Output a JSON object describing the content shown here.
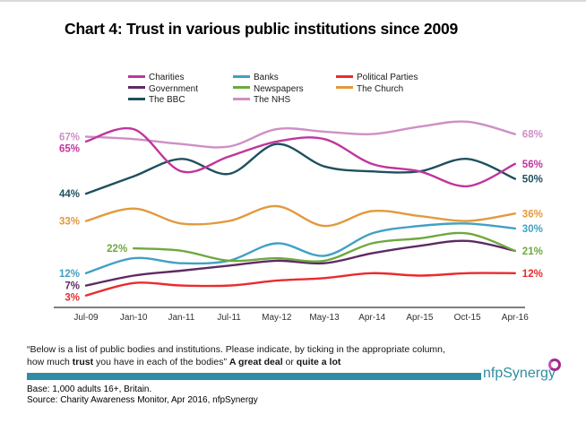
{
  "title": "Chart 4: Trust in various public institutions since 2009",
  "chart_data": {
    "type": "line",
    "categories": [
      "Jul-09",
      "Jan-10",
      "Jan-11",
      "Jul-11",
      "May-12",
      "May-13",
      "Apr-14",
      "Apr-15",
      "Oct-15",
      "Apr-16"
    ],
    "series": [
      {
        "name": "The NHS",
        "color": "#CE8FC6",
        "values": [
          67,
          66,
          64,
          63,
          70,
          69,
          68,
          71,
          73,
          68
        ],
        "start_label": "67%",
        "end_label": "68%"
      },
      {
        "name": "The Church",
        "color": "#E29A3D",
        "values": [
          33,
          38,
          32,
          33,
          39,
          31,
          37,
          35,
          33,
          36
        ],
        "start_label": "33%",
        "end_label": "36%"
      },
      {
        "name": "Banks",
        "color": "#41A0C4",
        "values": [
          12,
          18,
          16,
          17,
          24,
          19,
          28,
          31,
          32,
          30
        ],
        "start_label": "12%",
        "end_label": "30%"
      },
      {
        "name": "Government",
        "color": "#5E2A63",
        "values": [
          7,
          11,
          13,
          15,
          17,
          16,
          20,
          23,
          25,
          21
        ],
        "start_label": "7%",
        "end_label": null
      },
      {
        "name": "Newspapers",
        "color": "#6FA83F",
        "values": [
          null,
          22,
          21,
          17,
          18,
          17,
          24,
          26,
          28,
          21
        ],
        "start_label": "22%",
        "end_label": "21%"
      },
      {
        "name": "Political Parties",
        "color": "#EA2B2E",
        "values": [
          3,
          8,
          7,
          7,
          9,
          10,
          12,
          11,
          12,
          12
        ],
        "start_label": "3%",
        "end_label": "12%"
      },
      {
        "name": "The BBC",
        "color": "#1F505E",
        "values": [
          44,
          51,
          58,
          52,
          64,
          55,
          53,
          53,
          58,
          50
        ],
        "start_label": "44%",
        "end_label": "50%"
      },
      {
        "name": "Charities",
        "color": "#C0359C",
        "values": [
          65,
          70,
          53,
          59,
          65,
          66,
          56,
          53,
          47,
          56
        ],
        "start_label": "65%",
        "end_label": "56%"
      }
    ],
    "legend_columns": [
      [
        "Charities",
        "Government",
        "The BBC"
      ],
      [
        "Banks",
        "Newspapers",
        "The NHS"
      ],
      [
        "Political Parties",
        "The Church"
      ]
    ],
    "xlabel": "",
    "ylabel": "",
    "grid": false,
    "legend_position": "top"
  },
  "footnote": {
    "lines": [
      [
        {
          "t": "“Below is a list of public bodies and institutions. Please indicate, by ticking in the appropriate column,",
          "b": false
        }
      ],
      [
        {
          "t": "how much ",
          "b": false
        },
        {
          "t": "trust",
          "b": true
        },
        {
          "t": " you have in each of the bodies” ",
          "b": false
        },
        {
          "t": "A great deal",
          "b": true
        },
        {
          "t": " or ",
          "b": false
        },
        {
          "t": "quite a lot",
          "b": true
        }
      ]
    ]
  },
  "base_line": "Base: 1,000  adults 16+, Britain.",
  "source_line": "Source: Charity Awareness Monitor, Apr 2016, nfpSynergy",
  "logo_text": "nfpSynergy",
  "colors": {
    "divider": "#2E8CA3",
    "logo_text": "#2E8CA3",
    "logo_swirl": "#9E2B8E",
    "axis": "#7f7f7f",
    "tick_text": "#303030"
  }
}
